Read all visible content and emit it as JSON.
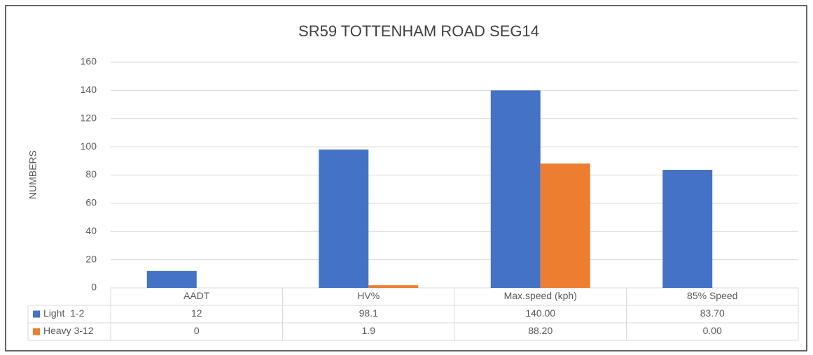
{
  "chart_data": {
    "type": "bar",
    "title": "SR59 TOTTENHAM ROAD SEG14",
    "y_label": "NUMBERS",
    "categories": [
      "AADT",
      "HV%",
      "Max.speed (kph)",
      "85% Speed"
    ],
    "series": [
      {
        "name": "Light  1-2",
        "color": "#4472c4",
        "values": [
          12,
          98.1,
          140,
          83.7
        ],
        "value_labels": [
          "12",
          "98.1",
          "140.00",
          "83.70"
        ]
      },
      {
        "name": "Heavy 3-12",
        "color": "#ed7d31",
        "values": [
          0,
          1.9,
          88.2,
          0
        ],
        "value_labels": [
          "0",
          "1.9",
          "88.20",
          "0.00"
        ]
      }
    ],
    "ylim": [
      0,
      160
    ],
    "yticks": [
      0,
      20,
      40,
      60,
      80,
      100,
      120,
      140,
      160
    ],
    "grid": true
  }
}
